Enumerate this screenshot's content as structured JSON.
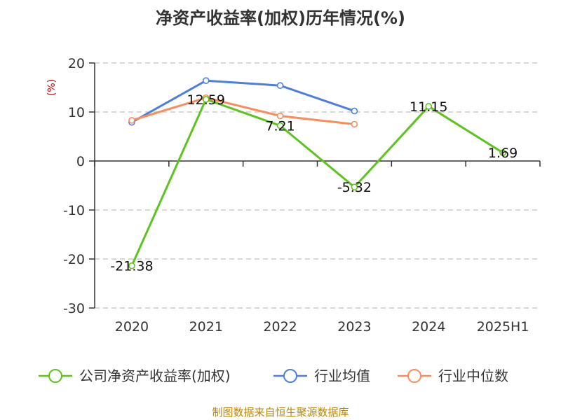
{
  "title": "净资产收益率(加权)历年情况(%)",
  "source": "制图数据来自恒生聚源数据库",
  "chart_data": {
    "type": "line",
    "title": "净资产收益率(加权)历年情况(%)",
    "ylabel": "(%)",
    "xlabel": "",
    "categories": [
      "2020",
      "2021",
      "2022",
      "2023",
      "2024",
      "2025H1"
    ],
    "ylim": [
      -30,
      20
    ],
    "yticks": [
      20,
      10,
      0,
      -10,
      -20,
      -30
    ],
    "grid": true,
    "legend_position": "bottom",
    "series": [
      {
        "name": "公司净资产收益率(加权)",
        "color": "#5cc41c",
        "labels": true,
        "values": [
          -21.38,
          12.59,
          7.21,
          -5.32,
          11.15,
          1.69
        ]
      },
      {
        "name": "行业均值",
        "color": "#4a7fe0",
        "labels": false,
        "values": [
          7.9,
          16.4,
          15.4,
          10.2,
          null,
          null
        ]
      },
      {
        "name": "行业中位数",
        "color": "#fb8c5a",
        "labels": false,
        "values": [
          8.3,
          12.9,
          9.2,
          7.5,
          null,
          null
        ]
      }
    ]
  }
}
